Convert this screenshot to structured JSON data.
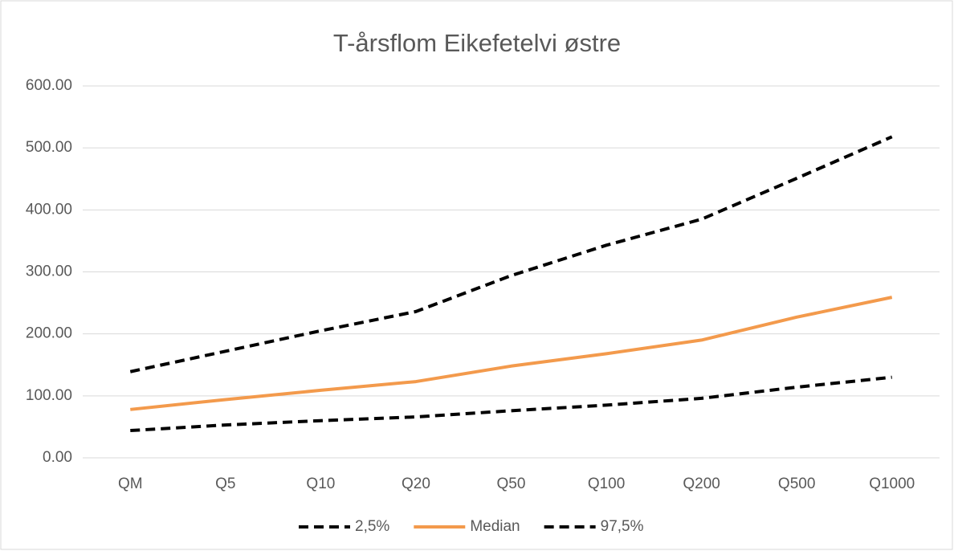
{
  "chart_data": {
    "type": "line",
    "title": "T-årsflom Eikefetelvi østre",
    "categories": [
      "QM",
      "Q5",
      "Q10",
      "Q20",
      "Q50",
      "Q100",
      "Q200",
      "Q500",
      "Q1000"
    ],
    "series": [
      {
        "name": "2,5%",
        "color": "#000000",
        "dashed": true,
        "values": [
          44,
          53,
          60,
          66,
          76,
          85,
          96,
          114,
          130
        ]
      },
      {
        "name": "Median",
        "color": "#f39a4c",
        "dashed": false,
        "values": [
          78,
          94,
          109,
          123,
          148,
          168,
          190,
          227,
          259
        ]
      },
      {
        "name": "97,5%",
        "color": "#000000",
        "dashed": true,
        "values": [
          139,
          172,
          205,
          236,
          294,
          343,
          385,
          451,
          518
        ]
      }
    ],
    "ylim": [
      0,
      600
    ],
    "yticks": [
      {
        "value": 0,
        "label": "0.00"
      },
      {
        "value": 100,
        "label": "100.00"
      },
      {
        "value": 200,
        "label": "200.00"
      },
      {
        "value": 300,
        "label": "300.00"
      },
      {
        "value": 400,
        "label": "400.00"
      },
      {
        "value": 500,
        "label": "500.00"
      },
      {
        "value": 600,
        "label": "600.00"
      }
    ],
    "grid": true,
    "legend": "bottom"
  }
}
